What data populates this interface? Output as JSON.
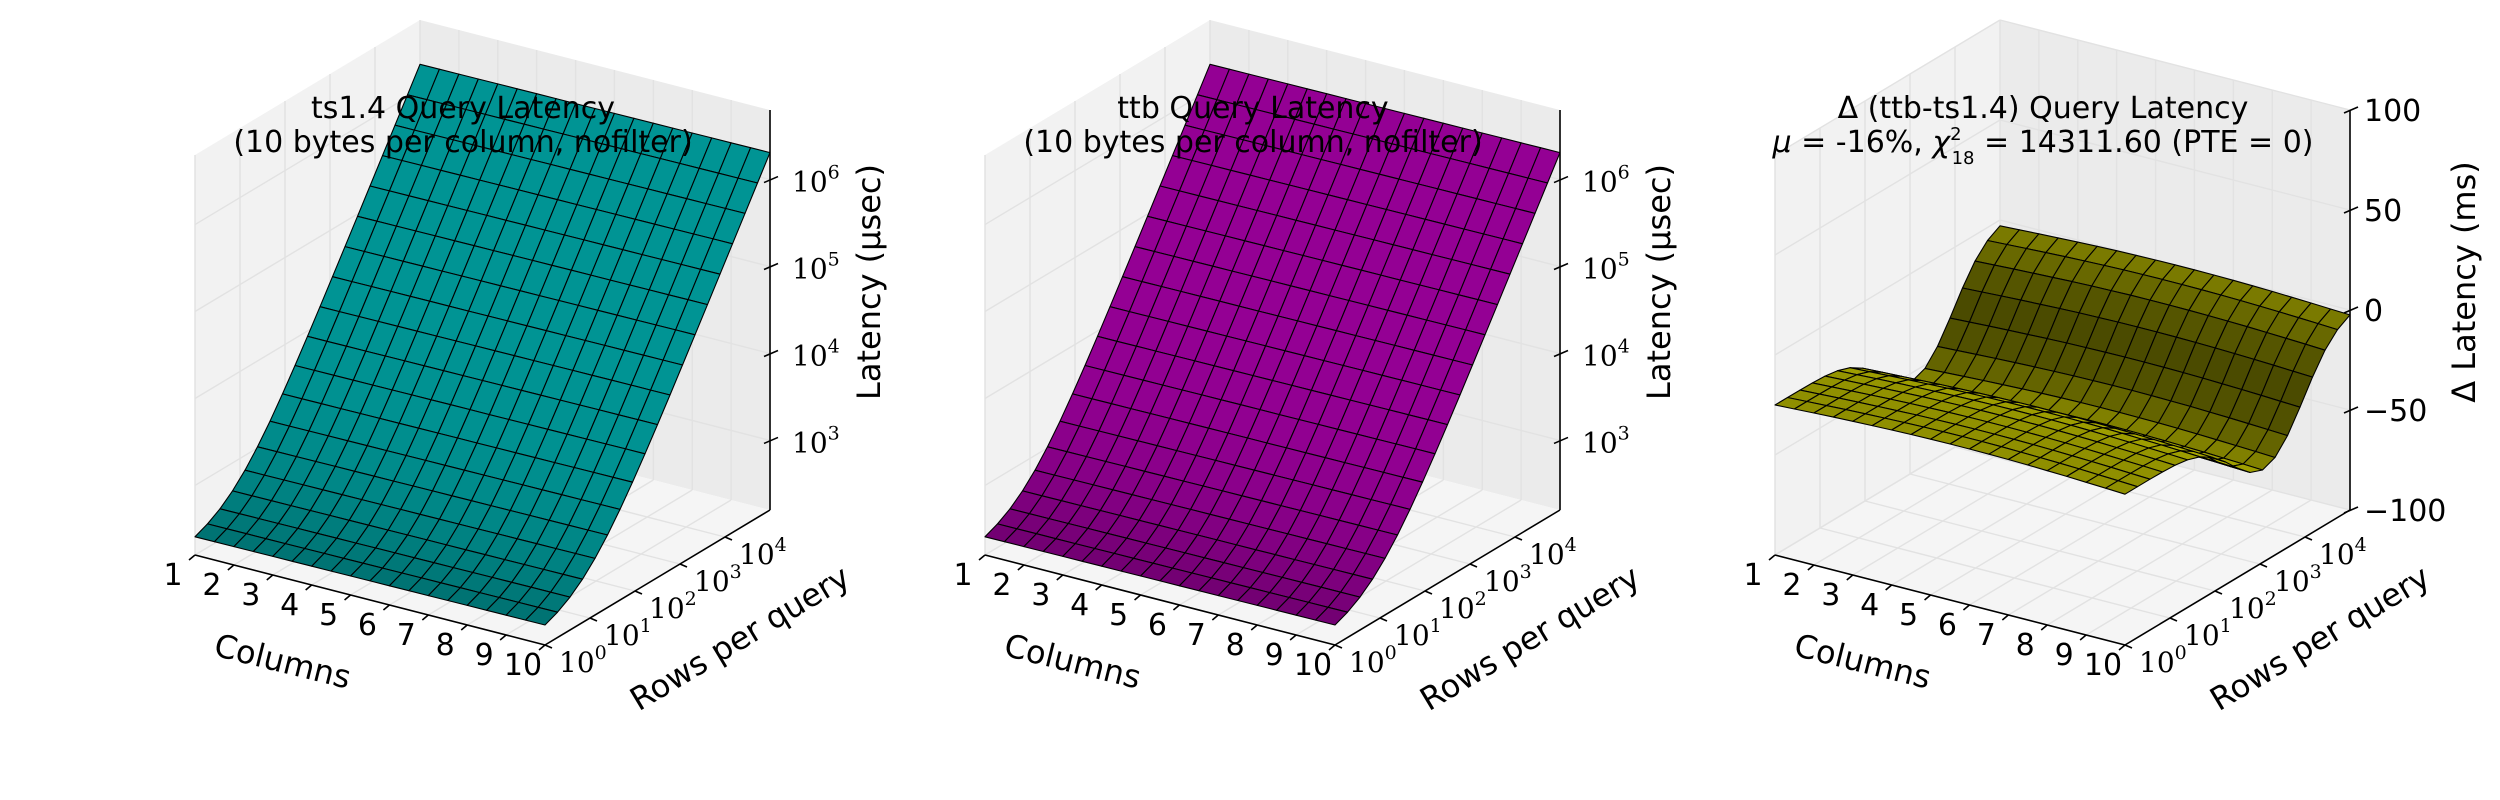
{
  "chart_data": [
    {
      "type": "surface3d",
      "title": "ts1.4 Query Latency",
      "subtitle": "(10 bytes per column, nofilter)",
      "xlabel": "Columns",
      "ylabel": "Rows per query",
      "zlabel": "Latency (μsec)",
      "zscale": "log",
      "x_ticks": [
        "1",
        "2",
        "3",
        "4",
        "5",
        "6",
        "7",
        "8",
        "9",
        "10"
      ],
      "y_ticks": [
        "10^0",
        "10^1",
        "10^2",
        "10^3",
        "10^4"
      ],
      "z_ticks": [
        "10^3",
        "10^4",
        "10^5",
        "10^6"
      ],
      "xlim": [
        1,
        10
      ],
      "ylim_log10": [
        0,
        5
      ],
      "zlim_log10": [
        2.2,
        6.8
      ],
      "surface_color": "#00bfbf",
      "model": "log10(latency) ≈ 2.3 + 0.95·max(0, log10(rows)−0.8), nearly flat in columns",
      "sample_rows_log10": [
        0,
        1,
        2,
        3,
        4,
        5
      ],
      "sample_latency_log10": [
        2.3,
        2.5,
        3.4,
        4.4,
        5.3,
        6.2
      ]
    },
    {
      "type": "surface3d",
      "title": "ttb Query Latency",
      "subtitle": "(10 bytes per column, nofilter)",
      "xlabel": "Columns",
      "ylabel": "Rows per query",
      "zlabel": "Latency (μsec)",
      "zscale": "log",
      "x_ticks": [
        "1",
        "2",
        "3",
        "4",
        "5",
        "6",
        "7",
        "8",
        "9",
        "10"
      ],
      "y_ticks": [
        "10^0",
        "10^1",
        "10^2",
        "10^3",
        "10^4"
      ],
      "z_ticks": [
        "10^3",
        "10^4",
        "10^5",
        "10^6"
      ],
      "xlim": [
        1,
        10
      ],
      "ylim_log10": [
        0,
        5
      ],
      "zlim_log10": [
        2.2,
        6.8
      ],
      "surface_color": "#bf00bf",
      "model": "log10(latency) ≈ 2.3 + 0.95·max(0, log10(rows)−0.8), nearly flat in columns",
      "sample_rows_log10": [
        0,
        1,
        2,
        3,
        4,
        5
      ],
      "sample_latency_log10": [
        2.3,
        2.5,
        3.4,
        4.4,
        5.3,
        6.2
      ]
    },
    {
      "type": "surface3d",
      "title": "Δ (ttb-ts1.4) Query Latency",
      "subtitle": "μ = -16%, χ²₁₈ = 14311.60 (PTE = 0)",
      "subtitle_parts": {
        "mu": "μ",
        "mu_eq": " = -16%, ",
        "chi": "χ",
        "chi_sup": "2",
        "chi_sub": "18",
        "rest": " = 14311.60 (PTE = 0)"
      },
      "xlabel": "Columns",
      "ylabel": "Rows per query",
      "zlabel": "Δ Latency (ms)",
      "zscale": "linear",
      "x_ticks": [
        "1",
        "2",
        "3",
        "4",
        "5",
        "6",
        "7",
        "8",
        "9",
        "10"
      ],
      "y_ticks": [
        "10^0",
        "10^1",
        "10^2",
        "10^3",
        "10^4"
      ],
      "z_ticks": [
        "−100",
        "−50",
        "0",
        "50",
        "100"
      ],
      "z_tick_values": [
        -100,
        -50,
        0,
        50,
        100
      ],
      "xlim": [
        1,
        10
      ],
      "ylim_log10": [
        0,
        5
      ],
      "zlim": [
        -100,
        100
      ],
      "surface_color": "#bfbf00",
      "model": "Δ ≈ -25 ms near 10^0 rows, dip to about -55 ms near 10^3 rows, rising to about 0 ms at 10^5 rows",
      "sample_rows_log10": [
        0,
        1,
        2,
        3,
        4,
        5
      ],
      "sample_delta_ms": [
        -25,
        -28,
        -40,
        -55,
        -35,
        0
      ]
    }
  ]
}
